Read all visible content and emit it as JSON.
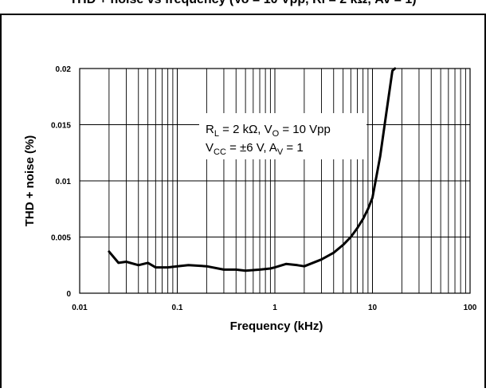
{
  "header": {
    "caption": "THD + noise vs frequency (Vo = 10 Vpp, Rl = 2 kΩ, Av = 1)"
  },
  "chart_data": {
    "type": "line",
    "title": "",
    "xlabel": "Frequency (kHz)",
    "ylabel": "THD + noise (%)",
    "x_scale": "log",
    "xlim": [
      0.01,
      100
    ],
    "ylim": [
      0,
      0.02
    ],
    "grid": true,
    "legend": "none",
    "x_ticks": [
      "0.01",
      "0.1",
      "1",
      "10",
      "100"
    ],
    "y_ticks": [
      "0",
      "0.005",
      "0.01",
      "0.015",
      "0.02"
    ],
    "annotation": {
      "line1": "RL = 2 kΩ, VO = 10 Vpp",
      "line2": "VCC = ±6 V, AV = 1"
    },
    "series": [
      {
        "color": "#000000",
        "x": [
          0.02,
          0.025,
          0.03,
          0.04,
          0.05,
          0.06,
          0.08,
          0.1,
          0.13,
          0.2,
          0.3,
          0.4,
          0.5,
          0.7,
          0.9,
          1.0,
          1.3,
          1.7,
          2.0,
          3.0,
          4.0,
          5.0,
          6.0,
          7.0,
          8.0,
          9.0,
          10.0,
          12.0,
          14.0,
          16.0,
          17.0
        ],
        "y": [
          0.0037,
          0.0027,
          0.0028,
          0.0025,
          0.0027,
          0.0023,
          0.0023,
          0.0024,
          0.0025,
          0.0024,
          0.0021,
          0.0021,
          0.002,
          0.0021,
          0.0022,
          0.0023,
          0.0026,
          0.0025,
          0.0024,
          0.003,
          0.0036,
          0.0043,
          0.005,
          0.0058,
          0.0066,
          0.0075,
          0.0085,
          0.0122,
          0.0163,
          0.0198,
          0.0212
        ]
      }
    ]
  }
}
